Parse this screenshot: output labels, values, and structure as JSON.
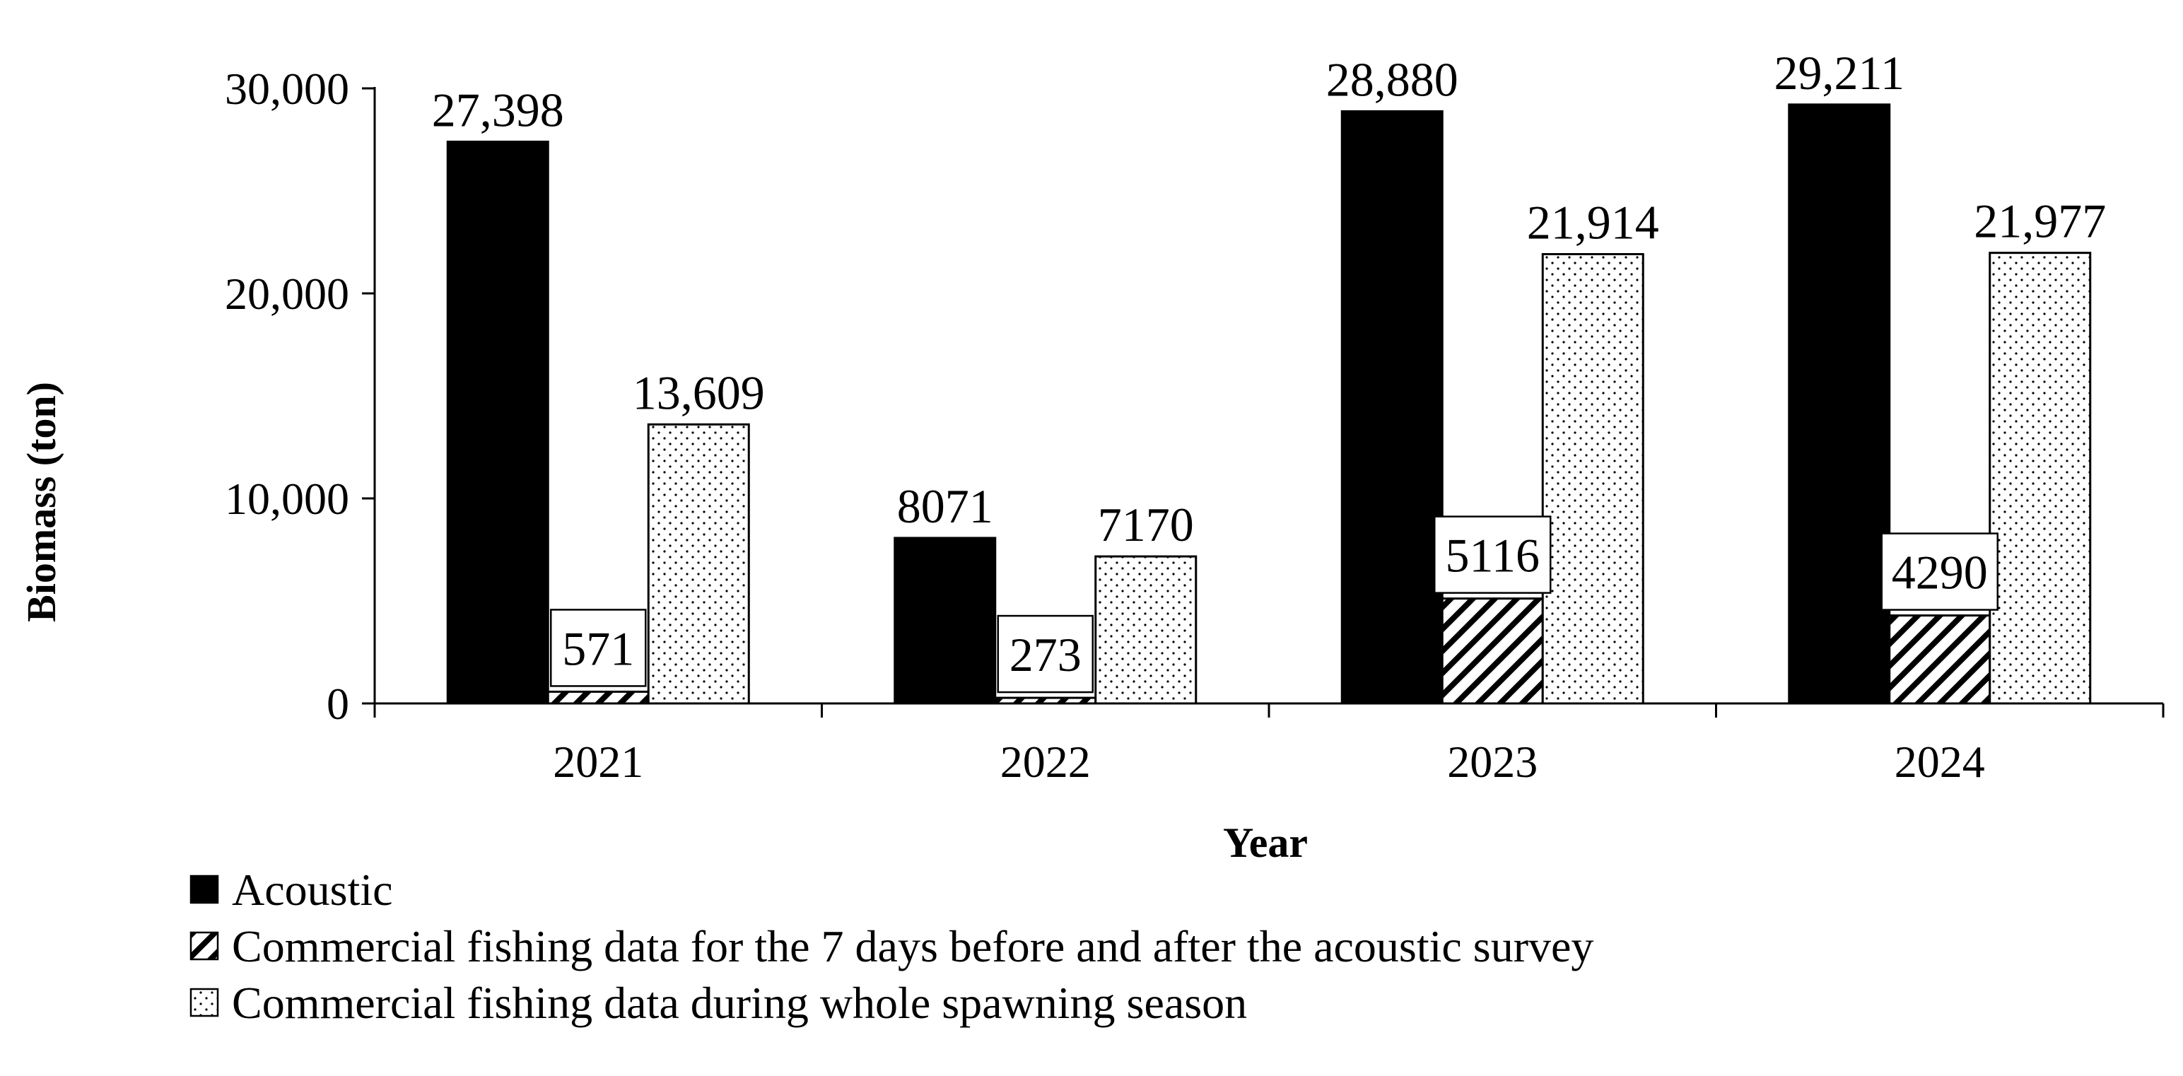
{
  "chart_data": {
    "type": "bar",
    "xlabel": "Year",
    "ylabel": "Biomass (ton)",
    "categories": [
      "2021",
      "2022",
      "2023",
      "2024"
    ],
    "ylim": [
      0,
      30000
    ],
    "yticks": [
      0,
      10000,
      20000,
      30000
    ],
    "ytick_labels": [
      "0",
      "10,000",
      "20,000",
      "30,000"
    ],
    "grid": false,
    "legend_position": "bottom-left",
    "series": [
      {
        "name": "Acoustic",
        "pattern": "solid",
        "color": "#000000",
        "values": [
          27398,
          8071,
          28880,
          29211
        ],
        "labels": [
          "27,398",
          "8071",
          "28,880",
          "29,211"
        ]
      },
      {
        "name": "Commercial fishing data for the 7 days before and after the acoustic survey",
        "pattern": "diagonal-hatch",
        "color": "#000000",
        "values": [
          571,
          273,
          5116,
          4290
        ],
        "labels": [
          "571",
          "273",
          "5116",
          "4290"
        ]
      },
      {
        "name": "Commercial fishing data during whole spawning season",
        "pattern": "dots",
        "color": "#000000",
        "values": [
          13609,
          7170,
          21914,
          21977
        ],
        "labels": [
          "13,609",
          "7170",
          "21,914",
          "21,977"
        ]
      }
    ]
  }
}
